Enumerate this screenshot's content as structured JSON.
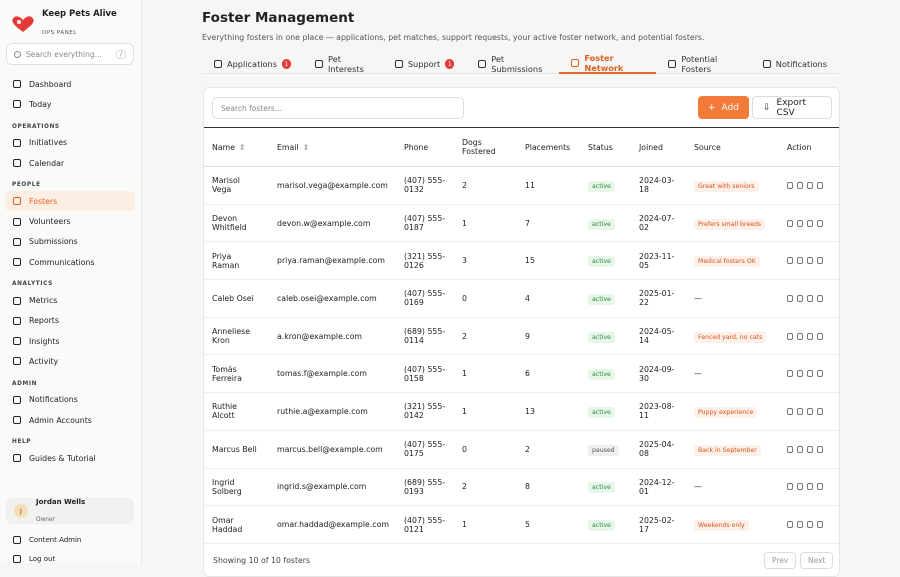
{
  "brand": {
    "name": "Keep Pets Alive",
    "tagline": "OPS PANEL"
  },
  "search": {
    "placeholder": "Search everything...",
    "shortcut": "/"
  },
  "nav": [
    {
      "title": null,
      "items": [
        "Dashboard",
        "Today"
      ]
    },
    {
      "title": "OPERATIONS",
      "items": [
        "Initiatives",
        "Calendar"
      ]
    },
    {
      "title": "PEOPLE",
      "items": [
        "Fosters",
        "Volunteers",
        "Submissions",
        "Communications"
      ]
    },
    {
      "title": "ANALYTICS",
      "items": [
        "Metrics",
        "Reports",
        "Insights",
        "Activity"
      ]
    },
    {
      "title": "ADMIN",
      "items": [
        "Notifications",
        "Admin Accounts"
      ]
    },
    {
      "title": "HELP",
      "items": [
        "Guides & Tutorial"
      ]
    }
  ],
  "active_nav": "Fosters",
  "user": {
    "initial": "J",
    "name": "Jordan Wells",
    "role": "Owner"
  },
  "footer_links": [
    "Content Admin",
    "Log out"
  ],
  "header": {
    "title": "Foster Management",
    "subtitle": "Everything fosters in one place — applications, pet matches, support requests, your active foster network, and potential fosters."
  },
  "tabs": [
    {
      "label": "Applications",
      "badge": 1
    },
    {
      "label": "Pet Interests"
    },
    {
      "label": "Support",
      "badge": 1
    },
    {
      "label": "Pet Submissions"
    },
    {
      "label": "Foster Network"
    },
    {
      "label": "Potential Fosters"
    },
    {
      "label": "Notifications"
    }
  ],
  "active_tab": "Foster Network",
  "toolbar": {
    "search_placeholder": "Search fosters...",
    "add": "Add",
    "export": "Export CSV"
  },
  "table": {
    "columns": [
      "Name",
      "Email",
      "Phone",
      "Dogs Fostered",
      "Placements",
      "Status",
      "Joined",
      "Source",
      "Action"
    ],
    "rows": [
      [
        "Marisol Vega",
        "marisol.vega@example.com",
        "(407) 555-0132",
        2,
        11,
        "active",
        "2024-03-18",
        "Great with seniors"
      ],
      [
        "Devon Whitfield",
        "devon.w@example.com",
        "(407) 555-0187",
        1,
        7,
        "active",
        "2024-07-02",
        "Prefers small breeds"
      ],
      [
        "Priya Raman",
        "priya.raman@example.com",
        "(321) 555-0126",
        3,
        15,
        "active",
        "2023-11-05",
        "Medical fosters OK"
      ],
      [
        "Caleb Osei",
        "caleb.osei@example.com",
        "(407) 555-0169",
        0,
        4,
        "active",
        "2025-01-22",
        "—"
      ],
      [
        "Anneliese Kron",
        "a.kron@example.com",
        "(689) 555-0114",
        2,
        9,
        "active",
        "2024-05-14",
        "Fenced yard, no cats"
      ],
      [
        "Tomás Ferreira",
        "tomas.f@example.com",
        "(407) 555-0158",
        1,
        6,
        "active",
        "2024-09-30",
        "—"
      ],
      [
        "Ruthie Alcott",
        "ruthie.a@example.com",
        "(321) 555-0142",
        1,
        13,
        "active",
        "2023-08-11",
        "Puppy experience"
      ],
      [
        "Marcus Bell",
        "marcus.bell@example.com",
        "(407) 555-0175",
        0,
        2,
        "paused",
        "2025-04-08",
        "Back in September"
      ],
      [
        "Ingrid Solberg",
        "ingrid.s@example.com",
        "(689) 555-0193",
        2,
        8,
        "active",
        "2024-12-01",
        "—"
      ],
      [
        "Omar Haddad",
        "omar.haddad@example.com",
        "(407) 555-0121",
        1,
        5,
        "active",
        "2025-02-17",
        "Weekends only"
      ]
    ]
  },
  "pagination": {
    "summary": "Showing 10 of 10 fosters",
    "prev": "Prev",
    "next": "Next"
  }
}
